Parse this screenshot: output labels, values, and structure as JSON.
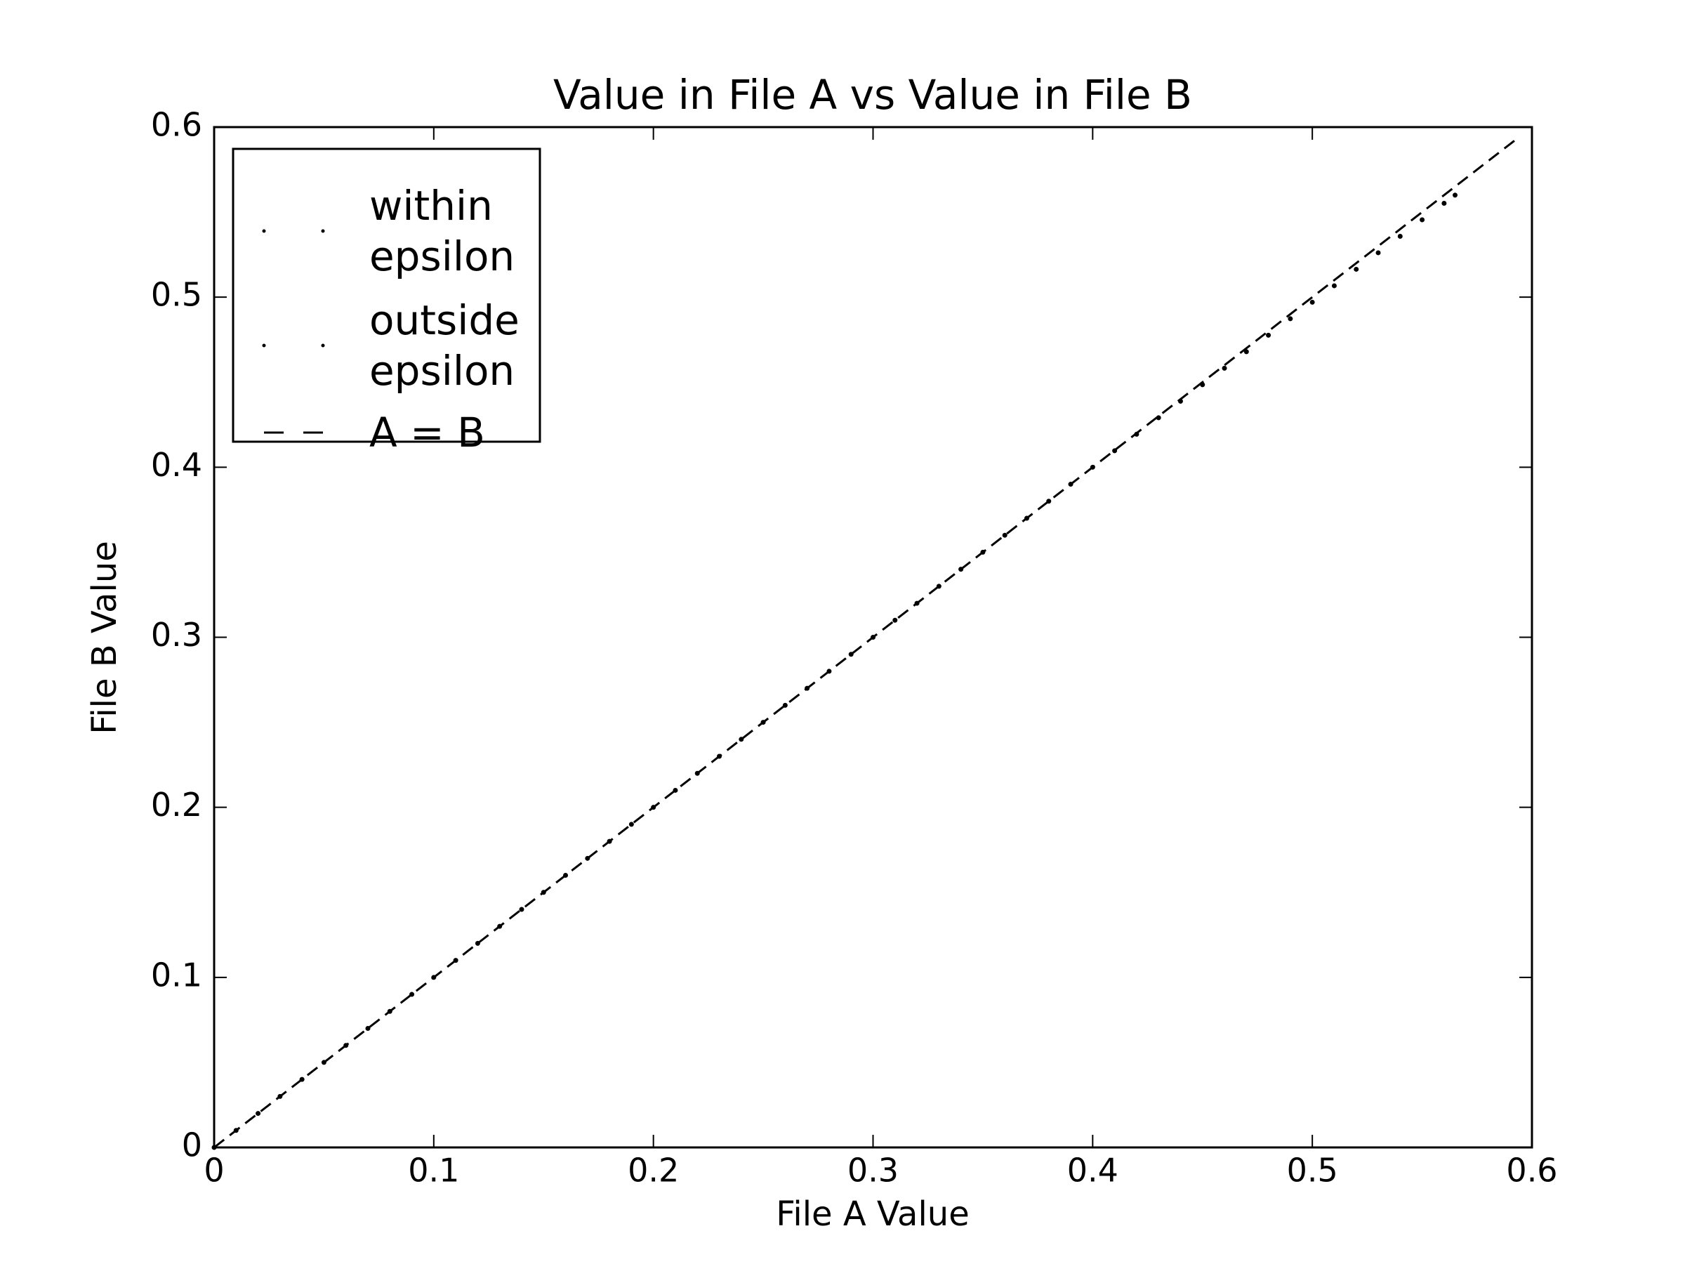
{
  "chart_data": {
    "type": "scatter",
    "title": "Value in File A vs Value in File B",
    "xlabel": "File A Value",
    "ylabel": "File B Value",
    "xlim": [
      0,
      0.6
    ],
    "ylim": [
      0,
      0.6
    ],
    "xticks": [
      0,
      0.1,
      0.2,
      0.3,
      0.4,
      0.5,
      0.6
    ],
    "yticks": [
      0,
      0.1,
      0.2,
      0.3,
      0.4,
      0.5,
      0.6
    ],
    "legend": "upper left",
    "series": [
      {
        "name": "within\nepsilon",
        "color": "#000000",
        "linestyle": "none",
        "x": [
          0,
          0.01,
          0.02,
          0.03,
          0.04,
          0.05,
          0.06,
          0.07,
          0.08,
          0.09,
          0.1,
          0.11,
          0.12,
          0.13,
          0.14,
          0.15,
          0.16,
          0.17,
          0.18,
          0.19,
          0.2,
          0.21,
          0.22,
          0.23,
          0.24,
          0.25,
          0.26,
          0.27,
          0.28,
          0.29,
          0.3,
          0.31,
          0.32,
          0.33,
          0.34,
          0.35,
          0.36,
          0.37,
          0.38,
          0.39,
          0.4
        ],
        "values": [
          0,
          0.01,
          0.02,
          0.03,
          0.04,
          0.05,
          0.06,
          0.07,
          0.08,
          0.09,
          0.1,
          0.11,
          0.12,
          0.13,
          0.14,
          0.15,
          0.16,
          0.17,
          0.18,
          0.19,
          0.2,
          0.21,
          0.22,
          0.23,
          0.24,
          0.25,
          0.26,
          0.27,
          0.28,
          0.29,
          0.3,
          0.31,
          0.32,
          0.33,
          0.34,
          0.35,
          0.36,
          0.37,
          0.38,
          0.39,
          0.4
        ]
      },
      {
        "name": "outside\nepsilon",
        "color": "#000000",
        "linestyle": "none",
        "x": [
          0.41,
          0.42,
          0.43,
          0.44,
          0.45,
          0.46,
          0.47,
          0.48,
          0.49,
          0.5,
          0.51,
          0.52,
          0.53,
          0.54,
          0.55,
          0.56,
          0.565
        ],
        "values": [
          0.4097,
          0.4194,
          0.4291,
          0.4388,
          0.4485,
          0.4582,
          0.4679,
          0.4776,
          0.4873,
          0.497,
          0.5067,
          0.5164,
          0.5261,
          0.5358,
          0.5455,
          0.5552,
          0.56
        ]
      },
      {
        "name": "A = B",
        "color": "#000000",
        "linestyle": "dashed",
        "x": [
          0,
          0.594
        ],
        "values": [
          0,
          0.594
        ]
      }
    ]
  }
}
